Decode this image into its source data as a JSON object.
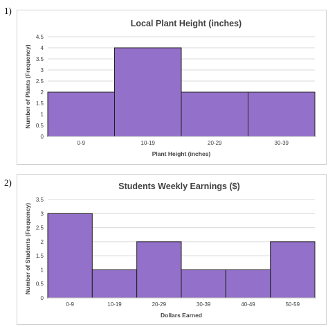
{
  "problems": [
    {
      "number_label": "1)",
      "chart_data": {
        "type": "bar",
        "title": "Local Plant Height (inches)",
        "xlabel": "Plant Height (inches)",
        "ylabel": "Number of Plants (Frequency)",
        "categories": [
          "0-9",
          "10-19",
          "20-29",
          "30-39"
        ],
        "values": [
          2,
          4,
          2,
          2
        ],
        "ylim": [
          0,
          4.5
        ],
        "yticks": [
          "0",
          "0.5",
          "1",
          "1.5",
          "2",
          "2.5",
          "3",
          "3.5",
          "4",
          "4.5"
        ],
        "grid": true,
        "bar_color": "#9370c9"
      }
    },
    {
      "number_label": "2)",
      "chart_data": {
        "type": "bar",
        "title": "Students Weekly Earnings ($)",
        "xlabel": "Dollars Earned",
        "ylabel": "Number of Students (Frequency)",
        "categories": [
          "0-9",
          "10-19",
          "20-29",
          "30-39",
          "40-49",
          "50-59"
        ],
        "values": [
          3,
          1,
          2,
          1,
          1,
          2
        ],
        "ylim": [
          0,
          3.5
        ],
        "yticks": [
          "0",
          "0.5",
          "1",
          "1.5",
          "2",
          "2.5",
          "3",
          "3.5"
        ],
        "grid": true,
        "bar_color": "#9370c9"
      }
    }
  ]
}
